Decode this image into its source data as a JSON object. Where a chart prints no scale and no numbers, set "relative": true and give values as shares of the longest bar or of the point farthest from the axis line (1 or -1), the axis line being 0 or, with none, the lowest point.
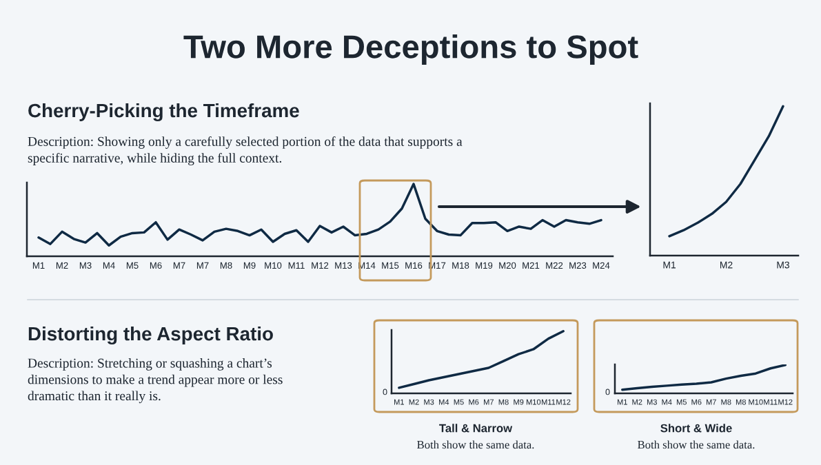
{
  "chart_data": [
    {
      "type": "other",
      "title": "Two More Deceptions to Spot"
    },
    {
      "type": "line",
      "title": "Cherry-Picking the Timeframe",
      "subtitle": "Description: Showing only a carefully selected portion of the data that supports a specific narrative, while hiding the full context.",
      "relative": true,
      "categories": [
        "M1",
        null,
        "M2",
        null,
        "M3",
        null,
        "M4",
        null,
        "M5",
        null,
        "M6",
        null,
        "M7",
        null,
        "M7",
        null,
        "M8",
        null,
        "M9",
        null,
        "M10",
        null,
        "M11",
        null,
        "M12",
        null,
        "M13",
        null,
        "M14",
        null,
        "M15",
        null,
        "M16",
        null,
        "M17",
        null,
        "M18",
        null,
        "M19",
        null,
        "M20",
        null,
        "M21",
        null,
        "M22",
        null,
        "M23",
        null,
        "M24"
      ],
      "series": [
        {
          "color": "#0f2a44",
          "values": [
            0.26,
            0.17,
            0.34,
            0.24,
            0.19,
            0.32,
            0.15,
            0.27,
            0.32,
            0.33,
            0.47,
            0.23,
            0.37,
            0.3,
            0.22,
            0.34,
            0.38,
            0.35,
            0.29,
            0.37,
            0.2,
            0.31,
            0.36,
            0.2,
            0.42,
            0.33,
            0.41,
            0.29,
            0.31,
            0.37,
            0.48,
            0.66,
            1.0,
            0.52,
            0.35,
            0.3,
            0.29,
            0.46,
            0.46,
            0.47,
            0.35,
            0.41,
            0.38,
            0.5,
            0.41,
            0.5,
            0.47,
            0.45,
            0.5
          ]
        }
      ]
    },
    {
      "type": "line",
      "relative": true,
      "categories": [
        "M1",
        null,
        null,
        null,
        "M2",
        null,
        null,
        null,
        "M3"
      ],
      "series": [
        {
          "color": "#0f2a44",
          "values": [
            0.13,
            0.17,
            0.22,
            0.28,
            0.36,
            0.48,
            0.64,
            0.8,
            1.0
          ]
        }
      ]
    },
    {
      "type": "other",
      "title": "Distorting the Aspect Ratio",
      "subtitle": "Description: Stretching or squashing a chart’s dimensions to make a trend appear more or less dramatic than it really is."
    },
    {
      "type": "line",
      "title": "Tall & Narrow",
      "relative": true,
      "categories": [
        "M1",
        "M2",
        "M3",
        "M4",
        "M5",
        "M6",
        "M7",
        "M8",
        "M9",
        "M10",
        "M11",
        "M12"
      ],
      "annotations": [
        "0",
        "Both show the same data."
      ],
      "series": [
        {
          "color": "#0f2a44",
          "values": [
            0.09,
            0.15,
            0.21,
            0.26,
            0.31,
            0.36,
            0.41,
            0.52,
            0.63,
            0.71,
            0.88,
            1.0
          ]
        }
      ]
    },
    {
      "type": "line",
      "title": "Short & Wide",
      "relative": true,
      "categories": [
        "M1",
        "M2",
        "M3",
        "M4",
        "M5",
        "M6",
        "M7",
        "M8",
        "M8",
        "M10",
        "M11",
        "M12"
      ],
      "annotations": [
        "0",
        "Both show the same data."
      ],
      "series": [
        {
          "color": "#0f2a44",
          "values": [
            0.13,
            0.18,
            0.23,
            0.27,
            0.31,
            0.34,
            0.39,
            0.52,
            0.62,
            0.7,
            0.88,
            1.0
          ]
        }
      ]
    }
  ]
}
